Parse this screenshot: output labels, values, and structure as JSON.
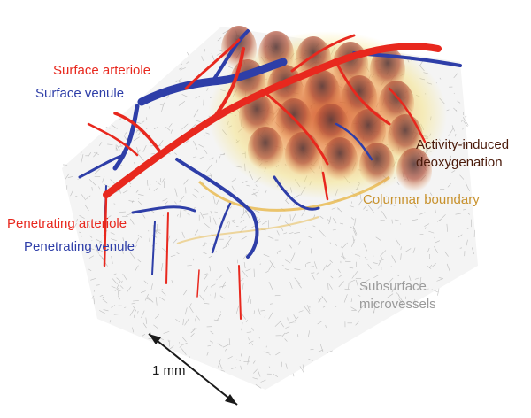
{
  "labels": {
    "surface_arteriole": "Surface arteriole",
    "surface_venule": "Surface venule",
    "activity_line1": "Activity-induced",
    "activity_line2": "deoxygenation",
    "columnar_boundary": "Columnar boundary",
    "penetrating_arteriole": "Penetrating arteriole",
    "penetrating_venule": "Penetrating venule",
    "subsurface_line1": "Subsurface",
    "subsurface_line2": "microvessels",
    "scale_bar": "1 mm"
  },
  "colors": {
    "arteriole": "#e8281e",
    "venule": "#2e3ea8",
    "activity_text": "#4a1a0a",
    "columnar_text": "#c8922e",
    "subsurface_text": "#9a9a9a",
    "microvessel": "#b8b8b8",
    "deoxy_core": "#d04818",
    "deoxy_halo": "#f6e070",
    "scale_bar": "#1a1a1a"
  }
}
